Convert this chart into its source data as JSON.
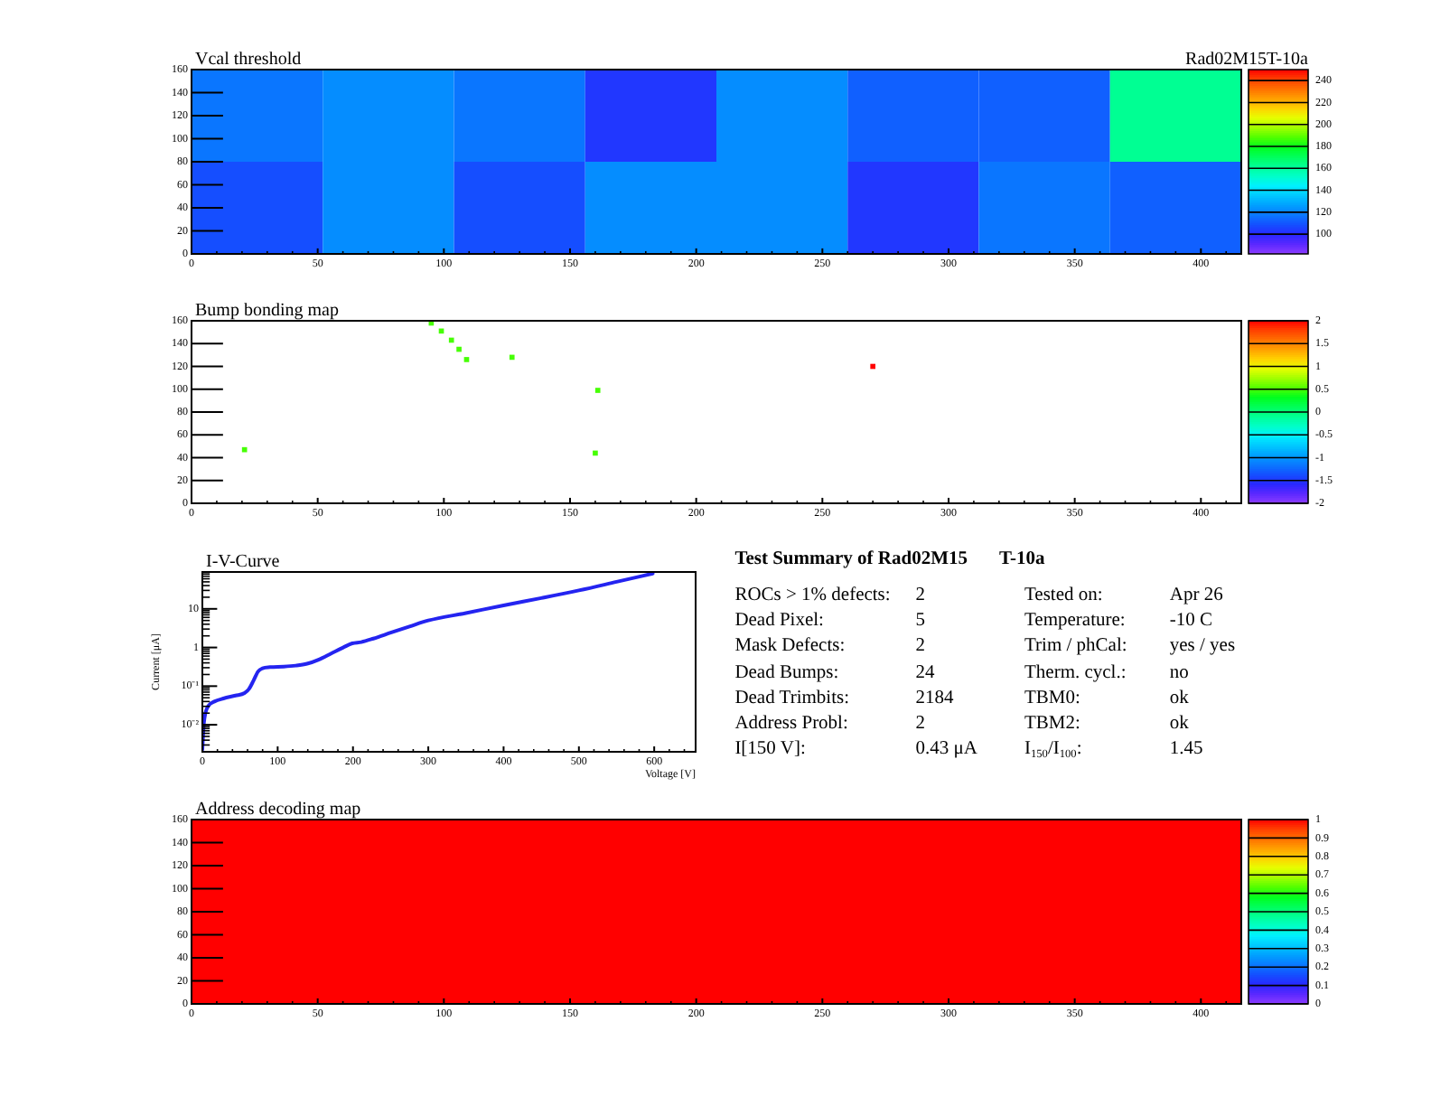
{
  "chart_data": [
    {
      "type": "heatmap",
      "title": "Vcal threshold",
      "subtitle": "Rad02M15T-10a",
      "x": [
        26,
        78,
        130,
        182,
        234,
        286,
        338,
        390
      ],
      "y": [
        120,
        40
      ],
      "cells": [
        [
          117,
          122,
          117,
          103,
          122,
          112,
          112,
          162
        ],
        [
          108,
          122,
          108,
          122,
          122,
          103,
          117,
          112
        ]
      ],
      "clim": [
        82,
        250
      ],
      "cticks": [
        100,
        120,
        140,
        160,
        180,
        200,
        220,
        240
      ],
      "xlim": [
        0,
        416
      ],
      "ylim": [
        0,
        160
      ],
      "xticks": [
        0,
        {
          "value": 10,
          "label": null
        },
        {
          "value": 20,
          "label": null
        },
        {
          "value": 30,
          "label": null
        },
        {
          "value": 40,
          "label": null
        },
        50,
        {
          "value": 60,
          "label": null
        },
        {
          "value": 70,
          "label": null
        },
        {
          "value": 80,
          "label": null
        },
        {
          "value": 90,
          "label": null
        },
        100,
        {
          "value": 110,
          "label": null
        },
        {
          "value": 120,
          "label": null
        },
        {
          "value": 130,
          "label": null
        },
        {
          "value": 140,
          "label": null
        },
        150,
        {
          "value": 160,
          "label": null
        },
        {
          "value": 170,
          "label": null
        },
        {
          "value": 180,
          "label": null
        },
        {
          "value": 190,
          "label": null
        },
        200,
        {
          "value": 210,
          "label": null
        },
        {
          "value": 220,
          "label": null
        },
        {
          "value": 230,
          "label": null
        },
        {
          "value": 240,
          "label": null
        },
        250,
        {
          "value": 260,
          "label": null
        },
        {
          "value": 270,
          "label": null
        },
        {
          "value": 280,
          "label": null
        },
        {
          "value": 290,
          "label": null
        },
        300,
        {
          "value": 310,
          "label": null
        },
        {
          "value": 320,
          "label": null
        },
        {
          "value": 330,
          "label": null
        },
        {
          "value": 340,
          "label": null
        },
        350,
        {
          "value": 360,
          "label": null
        },
        {
          "value": 370,
          "label": null
        },
        {
          "value": 380,
          "label": null
        },
        {
          "value": 390,
          "label": null
        },
        400,
        {
          "value": 410,
          "label": null
        }
      ],
      "yticks": [
        0,
        20,
        40,
        60,
        80,
        100,
        120,
        140,
        160
      ]
    },
    {
      "type": "scatter",
      "title": "Bump bonding map",
      "marker": "square",
      "x": [
        95,
        99,
        103,
        106,
        109,
        127,
        161,
        160,
        21,
        270
      ],
      "values": [
        158,
        151,
        143,
        135,
        126,
        128,
        99,
        44,
        47,
        120
      ],
      "cvalues": [
        0.5,
        0.5,
        0.5,
        0.5,
        0.5,
        0.5,
        0.5,
        0.5,
        0.5,
        2
      ],
      "clim": [
        -2,
        2
      ],
      "cticks": [
        -2,
        -1.5,
        -1,
        -0.5,
        0,
        0.5,
        1,
        1.5,
        2
      ],
      "xlim": [
        0,
        416
      ],
      "ylim": [
        0,
        160
      ],
      "xticks": [
        0,
        {
          "value": 10,
          "label": null
        },
        {
          "value": 20,
          "label": null
        },
        {
          "value": 30,
          "label": null
        },
        {
          "value": 40,
          "label": null
        },
        50,
        {
          "value": 60,
          "label": null
        },
        {
          "value": 70,
          "label": null
        },
        {
          "value": 80,
          "label": null
        },
        {
          "value": 90,
          "label": null
        },
        100,
        {
          "value": 110,
          "label": null
        },
        {
          "value": 120,
          "label": null
        },
        {
          "value": 130,
          "label": null
        },
        {
          "value": 140,
          "label": null
        },
        150,
        {
          "value": 160,
          "label": null
        },
        {
          "value": 170,
          "label": null
        },
        {
          "value": 180,
          "label": null
        },
        {
          "value": 190,
          "label": null
        },
        200,
        {
          "value": 210,
          "label": null
        },
        {
          "value": 220,
          "label": null
        },
        {
          "value": 230,
          "label": null
        },
        {
          "value": 240,
          "label": null
        },
        250,
        {
          "value": 260,
          "label": null
        },
        {
          "value": 270,
          "label": null
        },
        {
          "value": 280,
          "label": null
        },
        {
          "value": 290,
          "label": null
        },
        300,
        {
          "value": 310,
          "label": null
        },
        {
          "value": 320,
          "label": null
        },
        {
          "value": 330,
          "label": null
        },
        {
          "value": 340,
          "label": null
        },
        350,
        {
          "value": 360,
          "label": null
        },
        {
          "value": 370,
          "label": null
        },
        {
          "value": 380,
          "label": null
        },
        {
          "value": 390,
          "label": null
        },
        400,
        {
          "value": 410,
          "label": null
        }
      ],
      "yticks": [
        0,
        20,
        40,
        60,
        80,
        100,
        120,
        140,
        160
      ]
    },
    {
      "type": "line",
      "title": "I-V-Curve",
      "xlabel": "Voltage [V]",
      "ylabel": "Current [μA]",
      "color": "#2424f0",
      "log": "y",
      "x": [
        0,
        1,
        2,
        4,
        8,
        16,
        28,
        44,
        56,
        62,
        68,
        74,
        80,
        90,
        108,
        124,
        139,
        155,
        171,
        187,
        199,
        211,
        227,
        251,
        275,
        300,
        350,
        400,
        450,
        500,
        550,
        598
      ],
      "values": [
        0.0023,
        0.0056,
        0.011,
        0.02,
        0.031,
        0.04,
        0.048,
        0.057,
        0.066,
        0.085,
        0.14,
        0.24,
        0.29,
        0.31,
        0.32,
        0.34,
        0.38,
        0.49,
        0.7,
        1.0,
        1.28,
        1.38,
        1.7,
        2.45,
        3.5,
        5.0,
        7.8,
        12.3,
        19,
        30,
        50,
        82
      ],
      "xlim": [
        0,
        655
      ],
      "ylim": [
        0.002,
        90
      ],
      "xticks": [
        0,
        {
          "value": 20,
          "label": null
        },
        {
          "value": 40,
          "label": null
        },
        {
          "value": 60,
          "label": null
        },
        {
          "value": 80,
          "label": null
        },
        100,
        {
          "value": 120,
          "label": null
        },
        {
          "value": 140,
          "label": null
        },
        {
          "value": 160,
          "label": null
        },
        {
          "value": 180,
          "label": null
        },
        200,
        {
          "value": 220,
          "label": null
        },
        {
          "value": 240,
          "label": null
        },
        {
          "value": 260,
          "label": null
        },
        {
          "value": 280,
          "label": null
        },
        300,
        {
          "value": 320,
          "label": null
        },
        {
          "value": 340,
          "label": null
        },
        {
          "value": 360,
          "label": null
        },
        {
          "value": 380,
          "label": null
        },
        400,
        {
          "value": 420,
          "label": null
        },
        {
          "value": 440,
          "label": null
        },
        {
          "value": 460,
          "label": null
        },
        {
          "value": 480,
          "label": null
        },
        500,
        {
          "value": 520,
          "label": null
        },
        {
          "value": 540,
          "label": null
        },
        {
          "value": 560,
          "label": null
        },
        {
          "value": 580,
          "label": null
        },
        600,
        {
          "value": 620,
          "label": null
        },
        {
          "value": 640,
          "label": null
        }
      ],
      "yticks": [
        {
          "value": 0.003,
          "label": null
        },
        {
          "value": 0.004,
          "label": null
        },
        {
          "value": 0.005,
          "label": null
        },
        {
          "value": 0.006,
          "label": null
        },
        {
          "value": 0.007,
          "label": null
        },
        {
          "value": 0.008,
          "label": null
        },
        {
          "value": 0.009,
          "label": null
        },
        {
          "value": 0.01,
          "label": "10⁻²"
        },
        {
          "value": 0.02,
          "label": null
        },
        {
          "value": 0.03,
          "label": null
        },
        {
          "value": 0.04,
          "label": null
        },
        {
          "value": 0.05,
          "label": null
        },
        {
          "value": 0.06,
          "label": null
        },
        {
          "value": 0.07,
          "label": null
        },
        {
          "value": 0.08,
          "label": null
        },
        {
          "value": 0.09,
          "label": null
        },
        {
          "value": 0.1,
          "label": "10⁻¹"
        },
        {
          "value": 0.2,
          "label": null
        },
        {
          "value": 0.3,
          "label": null
        },
        {
          "value": 0.4,
          "label": null
        },
        {
          "value": 0.5,
          "label": null
        },
        {
          "value": 0.6,
          "label": null
        },
        {
          "value": 0.7,
          "label": null
        },
        {
          "value": 0.8,
          "label": null
        },
        {
          "value": 0.9,
          "label": null
        },
        1,
        {
          "value": 2,
          "label": null
        },
        {
          "value": 3,
          "label": null
        },
        {
          "value": 4,
          "label": null
        },
        {
          "value": 5,
          "label": null
        },
        {
          "value": 6,
          "label": null
        },
        {
          "value": 7,
          "label": null
        },
        {
          "value": 8,
          "label": null
        },
        {
          "value": 9,
          "label": null
        },
        10,
        {
          "value": 20,
          "label": null
        },
        {
          "value": 30,
          "label": null
        },
        {
          "value": 40,
          "label": null
        },
        {
          "value": 50,
          "label": null
        },
        {
          "value": 60,
          "label": null
        },
        {
          "value": 70,
          "label": null
        },
        {
          "value": 80,
          "label": null
        }
      ]
    },
    {
      "type": "other",
      "title": "Test Summary of Rad02M15",
      "subtitle": "T-10a",
      "annotations": [
        "ROCs > 1% defects:",
        "2",
        "Tested on:",
        "Apr 26",
        "Dead Pixel:",
        "5",
        "Temperature:",
        "-10 C",
        "Mask Defects:",
        "2",
        "Trim / phCal:",
        "yes / yes",
        "Dead Bumps:",
        "24",
        "Therm. cycl.:",
        "no",
        "Dead Trimbits:",
        "2184",
        "TBM0:",
        "ok",
        "Address Probl:",
        "2",
        "TBM2:",
        "ok",
        "I[150 V]:",
        "0.43 μA",
        "I$_{150}$/I$_{100}$:",
        "1.45"
      ]
    },
    {
      "type": "heatmap",
      "title": "Address decoding map",
      "cells": [
        [
          1
        ]
      ],
      "clim": [
        0,
        1
      ],
      "cticks": [
        0,
        0.1,
        0.2,
        0.3,
        0.4,
        0.5,
        0.6,
        0.7,
        0.8,
        0.9,
        1
      ],
      "xlim": [
        0,
        416
      ],
      "ylim": [
        0,
        160
      ],
      "xticks": [
        0,
        {
          "value": 10,
          "label": null
        },
        {
          "value": 20,
          "label": null
        },
        {
          "value": 30,
          "label": null
        },
        {
          "value": 40,
          "label": null
        },
        50,
        {
          "value": 60,
          "label": null
        },
        {
          "value": 70,
          "label": null
        },
        {
          "value": 80,
          "label": null
        },
        {
          "value": 90,
          "label": null
        },
        100,
        {
          "value": 110,
          "label": null
        },
        {
          "value": 120,
          "label": null
        },
        {
          "value": 130,
          "label": null
        },
        {
          "value": 140,
          "label": null
        },
        150,
        {
          "value": 160,
          "label": null
        },
        {
          "value": 170,
          "label": null
        },
        {
          "value": 180,
          "label": null
        },
        {
          "value": 190,
          "label": null
        },
        200,
        {
          "value": 210,
          "label": null
        },
        {
          "value": 220,
          "label": null
        },
        {
          "value": 230,
          "label": null
        },
        {
          "value": 240,
          "label": null
        },
        250,
        {
          "value": 260,
          "label": null
        },
        {
          "value": 270,
          "label": null
        },
        {
          "value": 280,
          "label": null
        },
        {
          "value": 290,
          "label": null
        },
        300,
        {
          "value": 310,
          "label": null
        },
        {
          "value": 320,
          "label": null
        },
        {
          "value": 330,
          "label": null
        },
        {
          "value": 340,
          "label": null
        },
        350,
        {
          "value": 360,
          "label": null
        },
        {
          "value": 370,
          "label": null
        },
        {
          "value": 380,
          "label": null
        },
        {
          "value": 390,
          "label": null
        },
        400,
        {
          "value": 410,
          "label": null
        }
      ],
      "yticks": [
        0,
        20,
        40,
        60,
        80,
        100,
        120,
        140,
        160
      ]
    }
  ]
}
